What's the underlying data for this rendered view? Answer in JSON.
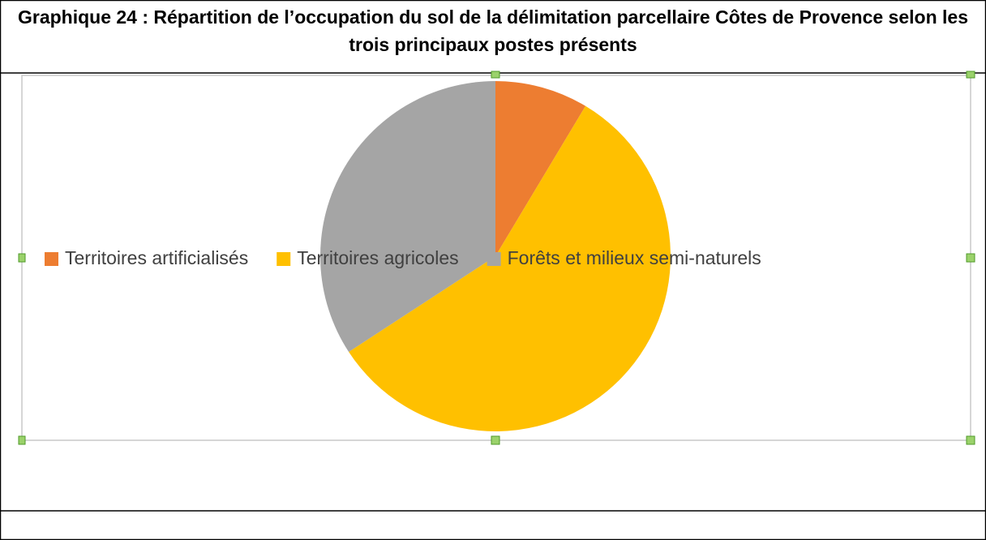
{
  "chart_data": {
    "type": "pie",
    "title": "Graphique 24 : Répartition de l’occupation du sol de la délimitation parcellaire Côtes de Provence selon les trois principaux postes présents",
    "categories": [
      "Territoires artificialisés",
      "Territoires agricoles",
      "Forêts et milieux semi-naturels"
    ],
    "values": [
      8.6,
      57.2,
      34.2
    ],
    "colors": [
      "#ed7d31",
      "#ffc000",
      "#a5a5a5"
    ],
    "legend": "left"
  }
}
